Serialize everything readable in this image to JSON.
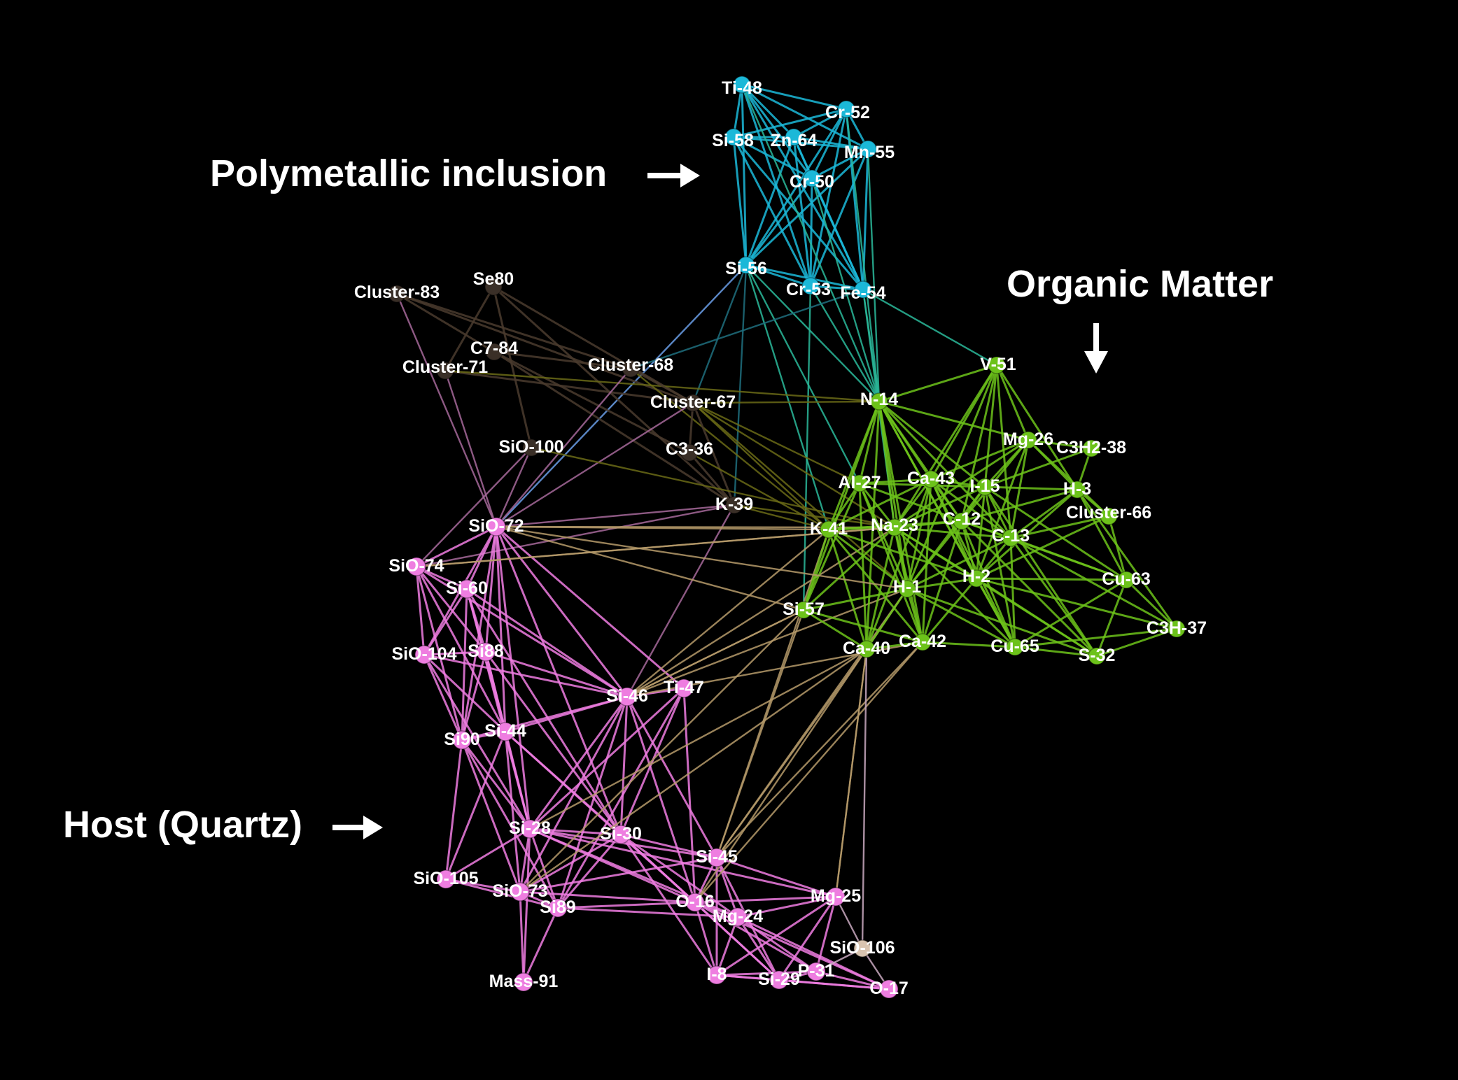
{
  "group_labels": {
    "polymetallic": "Polymetallic inclusion",
    "organic": "Organic Matter",
    "host": "Host (Quartz)"
  },
  "colors": {
    "background": "#000000",
    "polymetallic": "#1bb8d8",
    "organic": "#6cc21a",
    "host": "#ee7de0",
    "brown": "#3a2f27",
    "tan": "#d9c4b0",
    "text": "#ffffff",
    "arrow": "#ffffff"
  },
  "nodes": [
    {
      "id": "Ti-48",
      "group": "polymetallic"
    },
    {
      "id": "Cr-52",
      "group": "polymetallic"
    },
    {
      "id": "Si-58",
      "group": "polymetallic"
    },
    {
      "id": "Zn-64",
      "group": "polymetallic"
    },
    {
      "id": "Mn-55",
      "group": "polymetallic"
    },
    {
      "id": "Cr-50",
      "group": "polymetallic"
    },
    {
      "id": "Si-56",
      "group": "polymetallic"
    },
    {
      "id": "Cr-53",
      "group": "polymetallic"
    },
    {
      "id": "Fe-54",
      "group": "polymetallic"
    },
    {
      "id": "Se80",
      "group": "brown"
    },
    {
      "id": "Cluster-83",
      "group": "brown"
    },
    {
      "id": "C7-84",
      "group": "brown"
    },
    {
      "id": "Cluster-71",
      "group": "brown"
    },
    {
      "id": "Cluster-68",
      "group": "brown"
    },
    {
      "id": "Cluster-67",
      "group": "brown"
    },
    {
      "id": "C3-36",
      "group": "brown"
    },
    {
      "id": "K-39",
      "group": "brown"
    },
    {
      "id": "SiO-100",
      "group": "brown"
    },
    {
      "id": "V-51",
      "group": "organic"
    },
    {
      "id": "N-14",
      "group": "organic"
    },
    {
      "id": "Mg-26",
      "group": "organic"
    },
    {
      "id": "C3H2-38",
      "group": "organic"
    },
    {
      "id": "Al-27",
      "group": "organic"
    },
    {
      "id": "Ca-43",
      "group": "organic"
    },
    {
      "id": "I-15",
      "group": "organic"
    },
    {
      "id": "H-3",
      "group": "organic"
    },
    {
      "id": "Cluster-66",
      "group": "organic"
    },
    {
      "id": "K-41",
      "group": "organic"
    },
    {
      "id": "Na-23",
      "group": "organic"
    },
    {
      "id": "C-12",
      "group": "organic"
    },
    {
      "id": "C-13",
      "group": "organic"
    },
    {
      "id": "H-2",
      "group": "organic"
    },
    {
      "id": "Cu-63",
      "group": "organic"
    },
    {
      "id": "H-1",
      "group": "organic"
    },
    {
      "id": "Si-57",
      "group": "organic"
    },
    {
      "id": "C3H-37",
      "group": "organic"
    },
    {
      "id": "Ca-40",
      "group": "organic"
    },
    {
      "id": "Ca-42",
      "group": "organic"
    },
    {
      "id": "Cu-65",
      "group": "organic"
    },
    {
      "id": "S-32",
      "group": "organic"
    },
    {
      "id": "SiO-72",
      "group": "host"
    },
    {
      "id": "SiO-74",
      "group": "host"
    },
    {
      "id": "Si-60",
      "group": "host"
    },
    {
      "id": "SiO-104",
      "group": "host"
    },
    {
      "id": "Si88",
      "group": "host"
    },
    {
      "id": "Si-46",
      "group": "host"
    },
    {
      "id": "Ti-47",
      "group": "host"
    },
    {
      "id": "Si90",
      "group": "host"
    },
    {
      "id": "Si-44",
      "group": "host"
    },
    {
      "id": "Si-28",
      "group": "host"
    },
    {
      "id": "Si-30",
      "group": "host"
    },
    {
      "id": "Si-45",
      "group": "host"
    },
    {
      "id": "SiO-105",
      "group": "host"
    },
    {
      "id": "SiO-73",
      "group": "host"
    },
    {
      "id": "Si89",
      "group": "host"
    },
    {
      "id": "O-16",
      "group": "host"
    },
    {
      "id": "Mg-25",
      "group": "host"
    },
    {
      "id": "Mg-24",
      "group": "host"
    },
    {
      "id": "SiO-106",
      "group": "tan"
    },
    {
      "id": "Mass-91",
      "group": "host"
    },
    {
      "id": "I-8",
      "group": "host"
    },
    {
      "id": "Si-29",
      "group": "host"
    },
    {
      "id": "P-31",
      "group": "host"
    },
    {
      "id": "O-17",
      "group": "host"
    }
  ],
  "edges": [
    [
      "Ti-48",
      "Cr-52"
    ],
    [
      "Ti-48",
      "Si-58"
    ],
    [
      "Ti-48",
      "Zn-64"
    ],
    [
      "Ti-48",
      "Mn-55"
    ],
    [
      "Ti-48",
      "Cr-50"
    ],
    [
      "Ti-48",
      "Si-56"
    ],
    [
      "Ti-48",
      "Cr-53"
    ],
    [
      "Ti-48",
      "Fe-54"
    ],
    [
      "Cr-52",
      "Si-58"
    ],
    [
      "Cr-52",
      "Zn-64"
    ],
    [
      "Cr-52",
      "Mn-55"
    ],
    [
      "Cr-52",
      "Cr-50"
    ],
    [
      "Cr-52",
      "Si-56"
    ],
    [
      "Cr-52",
      "Cr-53"
    ],
    [
      "Cr-52",
      "Fe-54"
    ],
    [
      "Si-58",
      "Zn-64"
    ],
    [
      "Si-58",
      "Mn-55"
    ],
    [
      "Si-58",
      "Cr-50"
    ],
    [
      "Si-58",
      "Si-56"
    ],
    [
      "Si-58",
      "Cr-53"
    ],
    [
      "Si-58",
      "Fe-54"
    ],
    [
      "Zn-64",
      "Mn-55"
    ],
    [
      "Zn-64",
      "Cr-50"
    ],
    [
      "Zn-64",
      "Si-56"
    ],
    [
      "Zn-64",
      "Cr-53"
    ],
    [
      "Zn-64",
      "Fe-54"
    ],
    [
      "Mn-55",
      "Cr-50"
    ],
    [
      "Mn-55",
      "Si-56"
    ],
    [
      "Mn-55",
      "Cr-53"
    ],
    [
      "Mn-55",
      "Fe-54"
    ],
    [
      "Cr-50",
      "Si-56"
    ],
    [
      "Cr-50",
      "Cr-53"
    ],
    [
      "Cr-50",
      "Fe-54"
    ],
    [
      "Si-56",
      "Cr-53"
    ],
    [
      "Si-56",
      "Fe-54"
    ],
    [
      "Cr-53",
      "Fe-54"
    ],
    [
      "Si-56",
      "SiO-72"
    ],
    [
      "Si-56",
      "K-39"
    ],
    [
      "Si-56",
      "N-14"
    ],
    [
      "Si-56",
      "Al-27"
    ],
    [
      "Si-56",
      "K-41"
    ],
    [
      "Si-56",
      "Cluster-67"
    ],
    [
      "Cr-53",
      "Si-57"
    ],
    [
      "Cr-53",
      "N-14"
    ],
    [
      "Fe-54",
      "N-14"
    ],
    [
      "Fe-54",
      "Na-23"
    ],
    [
      "Fe-54",
      "V-51"
    ],
    [
      "Fe-54",
      "Cluster-68"
    ],
    [
      "Cr-50",
      "N-14"
    ],
    [
      "Mn-55",
      "N-14"
    ],
    [
      "Cr-52",
      "N-14"
    ],
    [
      "Ti-48",
      "N-14"
    ],
    [
      "Cluster-83",
      "Cluster-68"
    ],
    [
      "Cluster-83",
      "C7-84"
    ],
    [
      "Cluster-83",
      "SiO-72"
    ],
    [
      "Cluster-83",
      "Cluster-67"
    ],
    [
      "Se80",
      "SiO-100"
    ],
    [
      "Se80",
      "Cluster-71"
    ],
    [
      "Se80",
      "Cluster-67"
    ],
    [
      "Se80",
      "K-39"
    ],
    [
      "C7-84",
      "Cluster-68"
    ],
    [
      "C7-84",
      "K-39"
    ],
    [
      "C7-84",
      "C3-36"
    ],
    [
      "Cluster-71",
      "SiO-72"
    ],
    [
      "Cluster-71",
      "Cluster-67"
    ],
    [
      "Cluster-71",
      "N-14"
    ],
    [
      "Cluster-68",
      "Cluster-67"
    ],
    [
      "Cluster-68",
      "K-41"
    ],
    [
      "Cluster-68",
      "SiO-72"
    ],
    [
      "Cluster-67",
      "C3-36"
    ],
    [
      "Cluster-67",
      "K-39"
    ],
    [
      "Cluster-67",
      "N-14"
    ],
    [
      "Cluster-67",
      "Al-27"
    ],
    [
      "Cluster-67",
      "K-41"
    ],
    [
      "Cluster-67",
      "Na-23"
    ],
    [
      "Cluster-67",
      "SiO-72"
    ],
    [
      "Cluster-67",
      "H-1"
    ],
    [
      "C3-36",
      "K-39"
    ],
    [
      "C3-36",
      "K-41"
    ],
    [
      "K-39",
      "SiO-72"
    ],
    [
      "K-39",
      "SiO-74"
    ],
    [
      "K-39",
      "Si-46"
    ],
    [
      "K-39",
      "K-41"
    ],
    [
      "K-39",
      "Na-23"
    ],
    [
      "SiO-100",
      "SiO-72"
    ],
    [
      "SiO-100",
      "SiO-74"
    ],
    [
      "SiO-100",
      "Na-23"
    ],
    [
      "SiO-72",
      "SiO-74"
    ],
    [
      "SiO-72",
      "Si-60"
    ],
    [
      "SiO-72",
      "SiO-104"
    ],
    [
      "SiO-72",
      "Si88"
    ],
    [
      "SiO-72",
      "Si-46"
    ],
    [
      "SiO-72",
      "Si90"
    ],
    [
      "SiO-72",
      "Si-44"
    ],
    [
      "SiO-72",
      "Si-28"
    ],
    [
      "SiO-72",
      "K-41"
    ],
    [
      "SiO-72",
      "Na-23"
    ],
    [
      "SiO-72",
      "Ti-47"
    ],
    [
      "SiO-72",
      "Si-30"
    ],
    [
      "SiO-74",
      "Si-60"
    ],
    [
      "SiO-74",
      "SiO-104"
    ],
    [
      "SiO-74",
      "Si88"
    ],
    [
      "SiO-74",
      "Si90"
    ],
    [
      "SiO-74",
      "Si-44"
    ],
    [
      "SiO-74",
      "Na-23"
    ],
    [
      "SiO-74",
      "Si-46"
    ],
    [
      "Si-60",
      "SiO-104"
    ],
    [
      "Si-60",
      "Si88"
    ],
    [
      "Si-60",
      "Si90"
    ],
    [
      "Si-60",
      "Si-44"
    ],
    [
      "Si-60",
      "Si-46"
    ],
    [
      "Si-60",
      "Si-28"
    ],
    [
      "Si-60",
      "Si-30"
    ],
    [
      "SiO-104",
      "Si88"
    ],
    [
      "SiO-104",
      "Si90"
    ],
    [
      "SiO-104",
      "Si-44"
    ],
    [
      "SiO-104",
      "Si-28"
    ],
    [
      "SiO-104",
      "Si-46"
    ],
    [
      "Si88",
      "Si90"
    ],
    [
      "Si88",
      "Si-44"
    ],
    [
      "Si88",
      "Si-46"
    ],
    [
      "Si88",
      "Si-28"
    ],
    [
      "Si88",
      "Si-30"
    ],
    [
      "Si90",
      "Si-44"
    ],
    [
      "Si90",
      "Si-28"
    ],
    [
      "Si90",
      "SiO-105"
    ],
    [
      "Si90",
      "SiO-73"
    ],
    [
      "Si90",
      "Si89"
    ],
    [
      "Si90",
      "Si-46"
    ],
    [
      "Si-44",
      "Si-28"
    ],
    [
      "Si-44",
      "Si-46"
    ],
    [
      "Si-44",
      "SiO-105"
    ],
    [
      "Si-44",
      "SiO-73"
    ],
    [
      "Si-44",
      "Si-30"
    ],
    [
      "Si-44",
      "O-16"
    ],
    [
      "Si-46",
      "Ti-47"
    ],
    [
      "Si-46",
      "Si-28"
    ],
    [
      "Si-46",
      "Si-30"
    ],
    [
      "Si-46",
      "Si-45"
    ],
    [
      "Si-46",
      "O-16"
    ],
    [
      "Si-46",
      "Si89"
    ],
    [
      "Si-46",
      "SiO-73"
    ],
    [
      "Si-46",
      "Si-57"
    ],
    [
      "Si-46",
      "H-1"
    ],
    [
      "Si-46",
      "K-41"
    ],
    [
      "Si-46",
      "Na-23"
    ],
    [
      "Ti-47",
      "Si-30"
    ],
    [
      "Ti-47",
      "Si-28"
    ],
    [
      "Ti-47",
      "O-16"
    ],
    [
      "Ti-47",
      "Si89"
    ],
    [
      "Si-28",
      "Si-30"
    ],
    [
      "Si-28",
      "SiO-105"
    ],
    [
      "Si-28",
      "SiO-73"
    ],
    [
      "Si-28",
      "Si89"
    ],
    [
      "Si-28",
      "Si-45"
    ],
    [
      "Si-28",
      "O-16"
    ],
    [
      "Si-28",
      "Mg-24"
    ],
    [
      "Si-28",
      "Mass-91"
    ],
    [
      "Si-28",
      "Mg-25"
    ],
    [
      "Si-30",
      "Si-45"
    ],
    [
      "Si-30",
      "O-16"
    ],
    [
      "Si-30",
      "SiO-73"
    ],
    [
      "Si-30",
      "Si89"
    ],
    [
      "Si-30",
      "Mg-24"
    ],
    [
      "Si-30",
      "I-8"
    ],
    [
      "Si-30",
      "Si-29"
    ],
    [
      "Si-45",
      "O-16"
    ],
    [
      "Si-45",
      "Mg-25"
    ],
    [
      "Si-45",
      "Mg-24"
    ],
    [
      "Si-45",
      "I-8"
    ],
    [
      "Si-45",
      "Si-29"
    ],
    [
      "Si-45",
      "Si-57"
    ],
    [
      "Si-45",
      "SiO-73"
    ],
    [
      "SiO-105",
      "SiO-73"
    ],
    [
      "SiO-105",
      "Si89"
    ],
    [
      "SiO-73",
      "Si89"
    ],
    [
      "SiO-73",
      "O-16"
    ],
    [
      "SiO-73",
      "Si-57"
    ],
    [
      "SiO-73",
      "Mass-91"
    ],
    [
      "Si89",
      "O-16"
    ],
    [
      "Si89",
      "Mass-91"
    ],
    [
      "Si89",
      "Mg-24"
    ],
    [
      "O-16",
      "Mg-24"
    ],
    [
      "O-16",
      "Mg-25"
    ],
    [
      "O-16",
      "I-8"
    ],
    [
      "O-16",
      "Si-29"
    ],
    [
      "O-16",
      "P-31"
    ],
    [
      "O-16",
      "O-17"
    ],
    [
      "O-16",
      "Ca-42"
    ],
    [
      "O-16",
      "H-1"
    ],
    [
      "Mg-24",
      "Mg-25"
    ],
    [
      "Mg-24",
      "I-8"
    ],
    [
      "Mg-24",
      "Si-29"
    ],
    [
      "Mg-24",
      "P-31"
    ],
    [
      "Mg-24",
      "O-17"
    ],
    [
      "Mg-25",
      "Si-29"
    ],
    [
      "Mg-25",
      "P-31"
    ],
    [
      "Mg-25",
      "I-8"
    ],
    [
      "Mg-25",
      "SiO-106"
    ],
    [
      "Mg-25",
      "Ca-40"
    ],
    [
      "SiO-106",
      "O-17"
    ],
    [
      "SiO-106",
      "P-31"
    ],
    [
      "I-8",
      "Si-29"
    ],
    [
      "I-8",
      "P-31"
    ],
    [
      "I-8",
      "O-17"
    ],
    [
      "Si-29",
      "P-31"
    ],
    [
      "Si-29",
      "O-17"
    ],
    [
      "P-31",
      "O-17"
    ],
    [
      "Si-57",
      "Ca-40"
    ],
    [
      "Si-57",
      "Si-46"
    ],
    [
      "Ca-40",
      "SiO-73"
    ],
    [
      "Ca-40",
      "Si-45"
    ],
    [
      "H-1",
      "Si-45"
    ],
    [
      "Ca-42",
      "Si-46"
    ],
    [
      "K-41",
      "Si-45"
    ],
    [
      "Ca-40",
      "Si-28"
    ],
    [
      "Ca-42",
      "Si-45"
    ],
    [
      "N-14",
      "V-51"
    ],
    [
      "N-14",
      "Mg-26"
    ],
    [
      "N-14",
      "Al-27"
    ],
    [
      "N-14",
      "Ca-43"
    ],
    [
      "N-14",
      "I-15"
    ],
    [
      "N-14",
      "K-41"
    ],
    [
      "N-14",
      "Na-23"
    ],
    [
      "N-14",
      "C-12"
    ],
    [
      "N-14",
      "C-13"
    ],
    [
      "N-14",
      "H-2"
    ],
    [
      "N-14",
      "H-1"
    ],
    [
      "N-14",
      "Si-57"
    ],
    [
      "N-14",
      "Ca-40"
    ],
    [
      "N-14",
      "Ca-42"
    ],
    [
      "N-14",
      "Cu-65"
    ],
    [
      "V-51",
      "Mg-26"
    ],
    [
      "V-51",
      "I-15"
    ],
    [
      "V-51",
      "C-12"
    ],
    [
      "V-51",
      "C-13"
    ],
    [
      "V-51",
      "H-3"
    ],
    [
      "V-51",
      "Na-23"
    ],
    [
      "V-51",
      "H-1"
    ],
    [
      "V-51",
      "Ca-43"
    ],
    [
      "Mg-26",
      "C3H2-38"
    ],
    [
      "Mg-26",
      "I-15"
    ],
    [
      "Mg-26",
      "H-3"
    ],
    [
      "Mg-26",
      "Cluster-66"
    ],
    [
      "Mg-26",
      "C-13"
    ],
    [
      "Mg-26",
      "C-12"
    ],
    [
      "Mg-26",
      "H-2"
    ],
    [
      "Mg-26",
      "Ca-43"
    ],
    [
      "Mg-26",
      "Na-23"
    ],
    [
      "C3H2-38",
      "H-3"
    ],
    [
      "C3H2-38",
      "I-15"
    ],
    [
      "Al-27",
      "Ca-43"
    ],
    [
      "Al-27",
      "K-41"
    ],
    [
      "Al-27",
      "Na-23"
    ],
    [
      "Al-27",
      "C-12"
    ],
    [
      "Al-27",
      "H-1"
    ],
    [
      "Al-27",
      "Si-57"
    ],
    [
      "Al-27",
      "Ca-40"
    ],
    [
      "Al-27",
      "Ca-42"
    ],
    [
      "Al-27",
      "I-15"
    ],
    [
      "Ca-43",
      "I-15"
    ],
    [
      "Ca-43",
      "K-41"
    ],
    [
      "Ca-43",
      "Na-23"
    ],
    [
      "Ca-43",
      "C-12"
    ],
    [
      "Ca-43",
      "C-13"
    ],
    [
      "Ca-43",
      "H-2"
    ],
    [
      "Ca-43",
      "H-1"
    ],
    [
      "Ca-43",
      "Ca-40"
    ],
    [
      "Ca-43",
      "Ca-42"
    ],
    [
      "Ca-43",
      "Cu-65"
    ],
    [
      "I-15",
      "H-3"
    ],
    [
      "I-15",
      "C-12"
    ],
    [
      "I-15",
      "C-13"
    ],
    [
      "I-15",
      "H-2"
    ],
    [
      "I-15",
      "H-1"
    ],
    [
      "I-15",
      "Cu-63"
    ],
    [
      "I-15",
      "Cu-65"
    ],
    [
      "I-15",
      "S-32"
    ],
    [
      "I-15",
      "Na-23"
    ],
    [
      "H-3",
      "Cluster-66"
    ],
    [
      "H-3",
      "C-13"
    ],
    [
      "H-3",
      "Cu-63"
    ],
    [
      "H-3",
      "C3H-37"
    ],
    [
      "H-3",
      "H-2"
    ],
    [
      "H-3",
      "C-12"
    ],
    [
      "Cluster-66",
      "C-13"
    ],
    [
      "Cluster-66",
      "Cu-63"
    ],
    [
      "Cluster-66",
      "H-2"
    ],
    [
      "K-41",
      "Na-23"
    ],
    [
      "K-41",
      "C-12"
    ],
    [
      "K-41",
      "H-1"
    ],
    [
      "K-41",
      "Si-57"
    ],
    [
      "K-41",
      "Ca-40"
    ],
    [
      "K-41",
      "Ca-42"
    ],
    [
      "K-41",
      "H-2"
    ],
    [
      "Na-23",
      "C-12"
    ],
    [
      "Na-23",
      "C-13"
    ],
    [
      "Na-23",
      "H-1"
    ],
    [
      "Na-23",
      "H-2"
    ],
    [
      "Na-23",
      "Si-57"
    ],
    [
      "Na-23",
      "Ca-40"
    ],
    [
      "Na-23",
      "Ca-42"
    ],
    [
      "Na-23",
      "Cu-65"
    ],
    [
      "Na-23",
      "S-32"
    ],
    [
      "C-12",
      "C-13"
    ],
    [
      "C-12",
      "H-2"
    ],
    [
      "C-12",
      "H-1"
    ],
    [
      "C-12",
      "Cu-63"
    ],
    [
      "C-12",
      "Cu-65"
    ],
    [
      "C-12",
      "S-32"
    ],
    [
      "C-12",
      "Ca-42"
    ],
    [
      "C-13",
      "H-2"
    ],
    [
      "C-13",
      "H-1"
    ],
    [
      "C-13",
      "Cu-63"
    ],
    [
      "C-13",
      "Cu-65"
    ],
    [
      "C-13",
      "S-32"
    ],
    [
      "C-13",
      "C3H-37"
    ],
    [
      "H-2",
      "H-1"
    ],
    [
      "H-2",
      "Cu-63"
    ],
    [
      "H-2",
      "Cu-65"
    ],
    [
      "H-2",
      "S-32"
    ],
    [
      "H-2",
      "Ca-42"
    ],
    [
      "H-2",
      "C3H-37"
    ],
    [
      "Cu-63",
      "C3H-37"
    ],
    [
      "Cu-63",
      "S-32"
    ],
    [
      "Cu-63",
      "Cu-65"
    ],
    [
      "H-1",
      "Si-57"
    ],
    [
      "H-1",
      "Ca-40"
    ],
    [
      "H-1",
      "Ca-42"
    ],
    [
      "H-1",
      "Cu-65"
    ],
    [
      "H-1",
      "S-32"
    ],
    [
      "Si-57",
      "Ca-42"
    ],
    [
      "C3H-37",
      "S-32"
    ],
    [
      "C3H-37",
      "Cu-65"
    ],
    [
      "Ca-40",
      "Ca-42"
    ],
    [
      "Ca-42",
      "Cu-65"
    ],
    [
      "Cu-65",
      "S-32"
    ],
    [
      "Ca-40",
      "Mg-25"
    ],
    [
      "Ca-40",
      "SiO-106"
    ],
    [
      "H-1",
      "SiO-72"
    ],
    [
      "Si-57",
      "SiO-72"
    ],
    [
      "Na-23",
      "SiO-74"
    ]
  ]
}
